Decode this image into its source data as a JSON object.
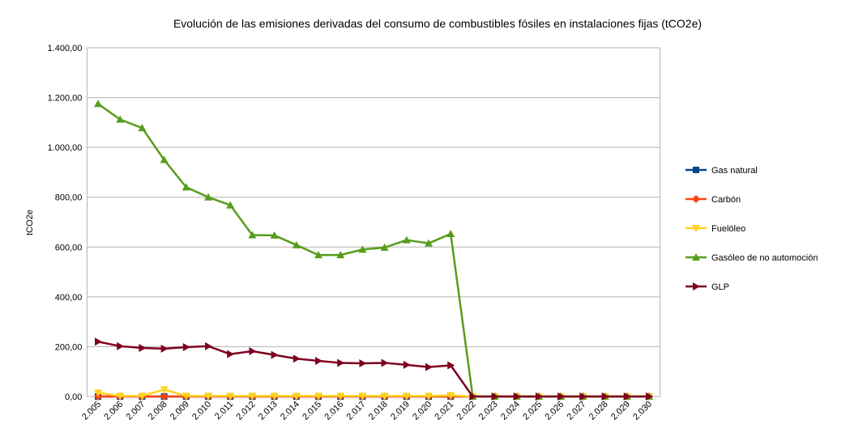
{
  "chart_data": {
    "type": "line",
    "title": "Evolución de las emisiones derivadas del consumo de combustibles fósiles en instalaciones fijas (tCO2e)",
    "y_label": "tCO2e",
    "categories": [
      "2.005",
      "2.006",
      "2.007",
      "2.008",
      "2.009",
      "2.010",
      "2.011",
      "2.012",
      "2.013",
      "2.014",
      "2.015",
      "2.016",
      "2.017",
      "2.018",
      "2.019",
      "2.020",
      "2.021",
      "2.022",
      "2.023",
      "2.024",
      "2.025",
      "2.026",
      "2.027",
      "2.028",
      "2.029",
      "2.030"
    ],
    "series": [
      {
        "name": "Gas natural",
        "color": "#004586",
        "marker": "square",
        "values": [
          0,
          0,
          0,
          0,
          0,
          0,
          0,
          0,
          0,
          0,
          0,
          0,
          0,
          0,
          0,
          0,
          0,
          0,
          0,
          0,
          0,
          0,
          0,
          0,
          0,
          0
        ]
      },
      {
        "name": "Carbón",
        "color": "#ff420e",
        "marker": "diamond",
        "values": [
          0,
          0,
          0,
          0,
          0,
          0,
          0,
          0,
          0,
          0,
          0,
          0,
          0,
          0,
          0,
          0,
          0,
          0,
          0,
          0,
          0,
          0,
          0,
          0,
          0,
          0
        ]
      },
      {
        "name": "Fuelóleo",
        "color": "#ffd320",
        "marker": "triangle-down",
        "values": [
          15,
          2,
          2,
          28,
          2,
          2,
          2,
          2,
          2,
          2,
          2,
          2,
          2,
          2,
          2,
          2,
          5,
          0,
          0,
          0,
          0,
          0,
          0,
          0,
          0,
          0
        ]
      },
      {
        "name": "Gasóleo de no automoción",
        "color": "#579d1c",
        "marker": "triangle-up",
        "values": [
          1175,
          1112,
          1078,
          950,
          840,
          800,
          768,
          648,
          647,
          608,
          568,
          568,
          590,
          598,
          628,
          615,
          653,
          0,
          0,
          0,
          0,
          0,
          0,
          0,
          0,
          0
        ]
      },
      {
        "name": "GLP",
        "color": "#7e0021",
        "marker": "triangle-right",
        "values": [
          220,
          202,
          195,
          192,
          198,
          202,
          170,
          182,
          167,
          152,
          143,
          135,
          133,
          135,
          127,
          118,
          125,
          0,
          0,
          0,
          0,
          0,
          0,
          0,
          0,
          0
        ]
      }
    ],
    "ylim": [
      0,
      1400
    ],
    "yticks": [
      {
        "value": 0,
        "label": "0,00"
      },
      {
        "value": 200,
        "label": "200,00"
      },
      {
        "value": 400,
        "label": "400,00"
      },
      {
        "value": 600,
        "label": "600,00"
      },
      {
        "value": 800,
        "label": "800,00"
      },
      {
        "value": 1000,
        "label": "1.000,00"
      },
      {
        "value": 1200,
        "label": "1.200,00"
      },
      {
        "value": 1400,
        "label": "1.400,00"
      }
    ],
    "grid": true,
    "legend": "right"
  }
}
